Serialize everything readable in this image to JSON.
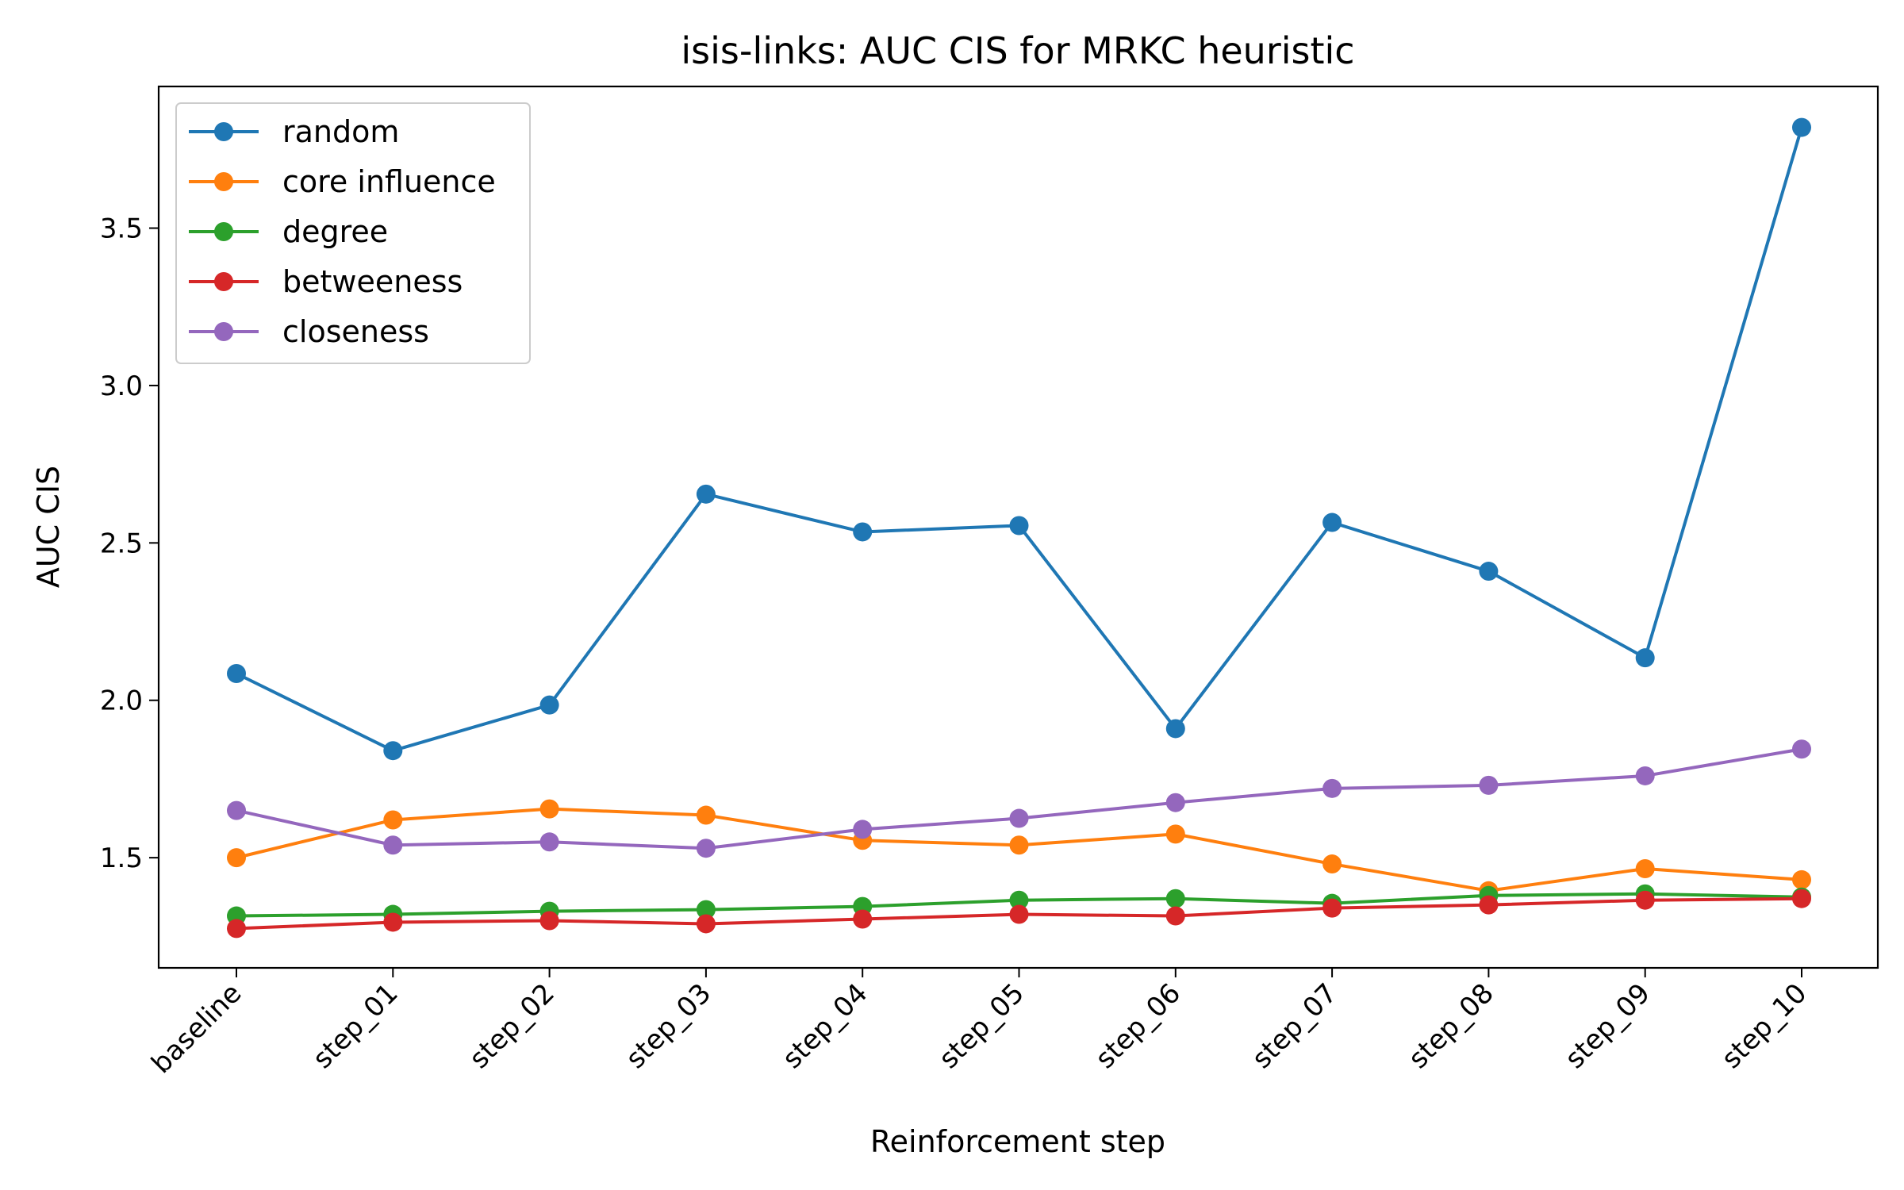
{
  "chart_data": {
    "type": "line",
    "title": "isis-links: AUC CIS for MRKC heuristic",
    "xlabel": "Reinforcement step",
    "ylabel": "AUC CIS",
    "categories": [
      "baseline",
      "step_01",
      "step_02",
      "step_03",
      "step_04",
      "step_05",
      "step_06",
      "step_07",
      "step_08",
      "step_09",
      "step_10"
    ],
    "ylim": [
      1.15,
      3.95
    ],
    "yticks": [
      1.5,
      2.0,
      2.5,
      3.0,
      3.5
    ],
    "ytick_labels": [
      "1.5",
      "2.0",
      "2.5",
      "3.0",
      "3.5"
    ],
    "grid": false,
    "legend_position": "top-left",
    "series": [
      {
        "name": "random",
        "color": "#1f77b4",
        "values": [
          2.085,
          1.84,
          1.985,
          2.655,
          2.535,
          2.555,
          1.91,
          2.565,
          2.41,
          2.135,
          3.82
        ]
      },
      {
        "name": "core influence",
        "color": "#ff7f0e",
        "values": [
          1.5,
          1.62,
          1.655,
          1.635,
          1.555,
          1.54,
          1.575,
          1.48,
          1.395,
          1.465,
          1.43
        ]
      },
      {
        "name": "degree",
        "color": "#2ca02c",
        "values": [
          1.315,
          1.32,
          1.33,
          1.335,
          1.345,
          1.365,
          1.37,
          1.355,
          1.38,
          1.385,
          1.375
        ]
      },
      {
        "name": "betweeness",
        "color": "#d62728",
        "values": [
          1.275,
          1.295,
          1.3,
          1.29,
          1.305,
          1.32,
          1.315,
          1.34,
          1.35,
          1.365,
          1.37
        ]
      },
      {
        "name": "closeness",
        "color": "#9467bd",
        "values": [
          1.65,
          1.54,
          1.55,
          1.53,
          1.59,
          1.625,
          1.675,
          1.72,
          1.73,
          1.76,
          1.845
        ]
      }
    ]
  }
}
